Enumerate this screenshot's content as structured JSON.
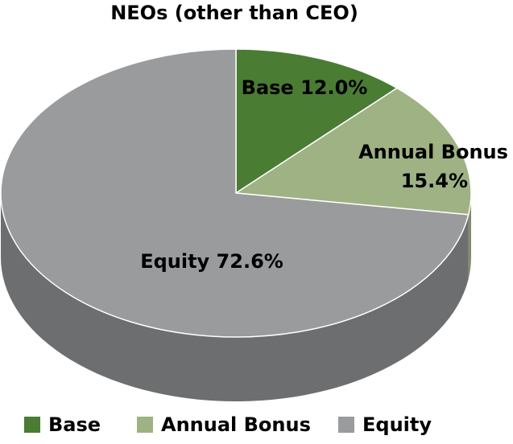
{
  "chart_data": {
    "type": "pie",
    "title": "NEOs (other than CEO)",
    "slices": [
      {
        "name": "Base",
        "value": 12.0,
        "label": "Base 12.0%",
        "color": "#4a7c34",
        "side_color": "#37602a"
      },
      {
        "name": "Annual Bonus",
        "value": 15.4,
        "label_lines": [
          "Annual Bonus",
          "15.4%"
        ],
        "color": "#9eb284",
        "side_color": "#7e8f68"
      },
      {
        "name": "Equity",
        "value": 72.6,
        "label": "Equity 72.6%",
        "color": "#9a9b9d",
        "side_color": "#6d6e70"
      }
    ],
    "legend": {
      "placement": "bottom",
      "items": [
        {
          "label": "Base",
          "color": "#4a7c34"
        },
        {
          "label": "Annual Bonus",
          "color": "#9eb284"
        },
        {
          "label": "Equity",
          "color": "#9a9b9d"
        }
      ]
    }
  }
}
